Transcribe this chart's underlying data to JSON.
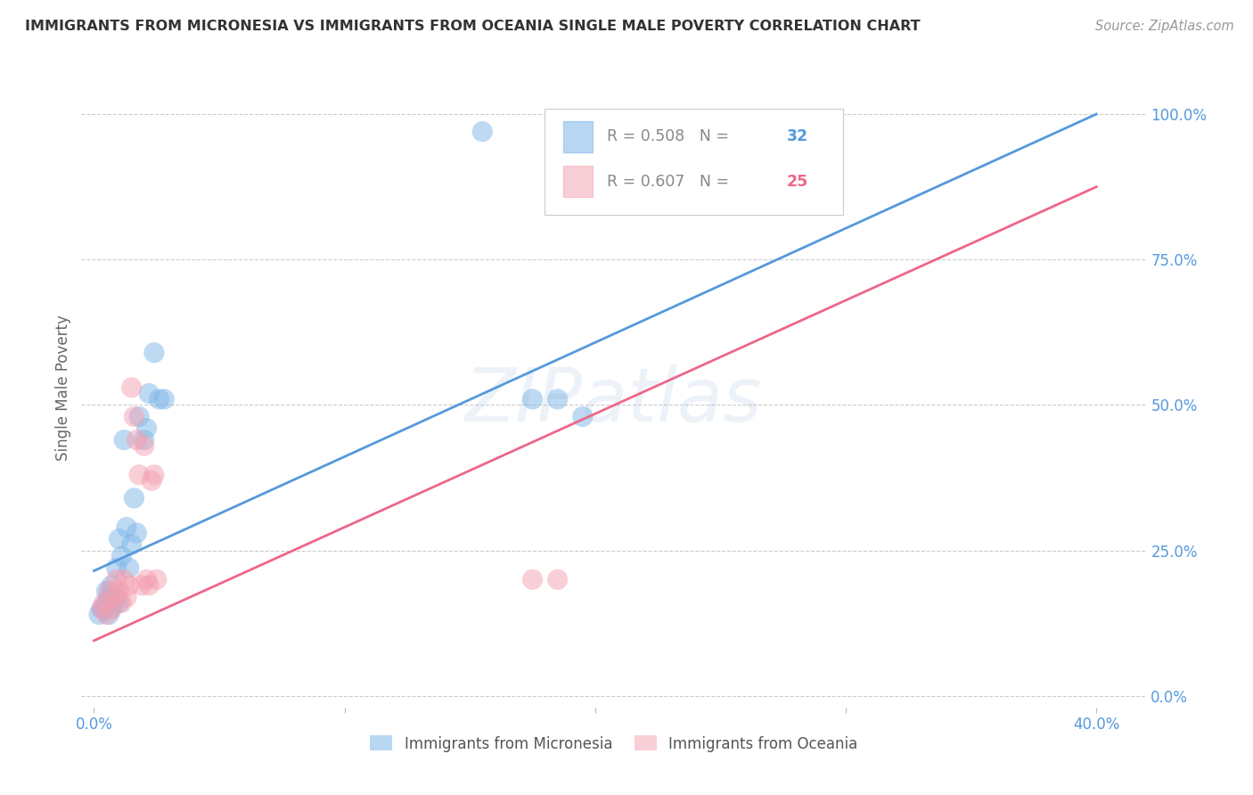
{
  "title": "IMMIGRANTS FROM MICRONESIA VS IMMIGRANTS FROM OCEANIA SINGLE MALE POVERTY CORRELATION CHART",
  "source": "Source: ZipAtlas.com",
  "xlabel_ticks": [
    "0.0%",
    "",
    "",
    "",
    "40.0%"
  ],
  "xlabel_tick_vals": [
    0.0,
    0.1,
    0.2,
    0.3,
    0.4
  ],
  "ylabel": "Single Male Poverty",
  "ylabel_ticks": [
    "0.0%",
    "25.0%",
    "50.0%",
    "75.0%",
    "100.0%"
  ],
  "ylabel_tick_vals": [
    0.0,
    0.25,
    0.5,
    0.75,
    1.0
  ],
  "xlim": [
    -0.005,
    0.42
  ],
  "ylim": [
    -0.02,
    1.08
  ],
  "legend1_R": "0.508",
  "legend1_N": "32",
  "legend2_R": "0.607",
  "legend2_N": "25",
  "blue_color": "#7EB6E8",
  "pink_color": "#F4A0B0",
  "blue_line_color": "#5599DD",
  "pink_line_color": "#EE6688",
  "watermark": "ZIPatlas",
  "title_color": "#333333",
  "source_color": "#999999",
  "axis_label_color": "#5599DD",
  "scatter_blue": {
    "x": [
      0.002,
      0.003,
      0.004,
      0.005,
      0.005,
      0.006,
      0.006,
      0.007,
      0.007,
      0.008,
      0.009,
      0.009,
      0.01,
      0.01,
      0.011,
      0.012,
      0.013,
      0.014,
      0.015,
      0.016,
      0.017,
      0.018,
      0.02,
      0.021,
      0.022,
      0.024,
      0.026,
      0.028,
      0.155,
      0.175,
      0.185,
      0.195
    ],
    "y": [
      0.14,
      0.15,
      0.15,
      0.16,
      0.18,
      0.14,
      0.17,
      0.15,
      0.19,
      0.16,
      0.17,
      0.22,
      0.16,
      0.27,
      0.24,
      0.44,
      0.29,
      0.22,
      0.26,
      0.34,
      0.28,
      0.48,
      0.44,
      0.46,
      0.52,
      0.59,
      0.51,
      0.51,
      0.97,
      0.51,
      0.51,
      0.48
    ]
  },
  "scatter_pink": {
    "x": [
      0.003,
      0.004,
      0.005,
      0.006,
      0.007,
      0.008,
      0.009,
      0.01,
      0.011,
      0.012,
      0.013,
      0.014,
      0.015,
      0.016,
      0.017,
      0.018,
      0.019,
      0.02,
      0.021,
      0.022,
      0.023,
      0.024,
      0.025,
      0.175,
      0.185
    ],
    "y": [
      0.15,
      0.16,
      0.14,
      0.18,
      0.15,
      0.17,
      0.2,
      0.18,
      0.16,
      0.2,
      0.17,
      0.19,
      0.53,
      0.48,
      0.44,
      0.38,
      0.19,
      0.43,
      0.2,
      0.19,
      0.37,
      0.38,
      0.2,
      0.2,
      0.2
    ]
  },
  "blue_line": {
    "x0": 0.0,
    "y0": 0.215,
    "x1": 0.4,
    "y1": 1.0
  },
  "pink_line": {
    "x0": 0.0,
    "y0": 0.095,
    "x1": 0.4,
    "y1": 0.875
  }
}
